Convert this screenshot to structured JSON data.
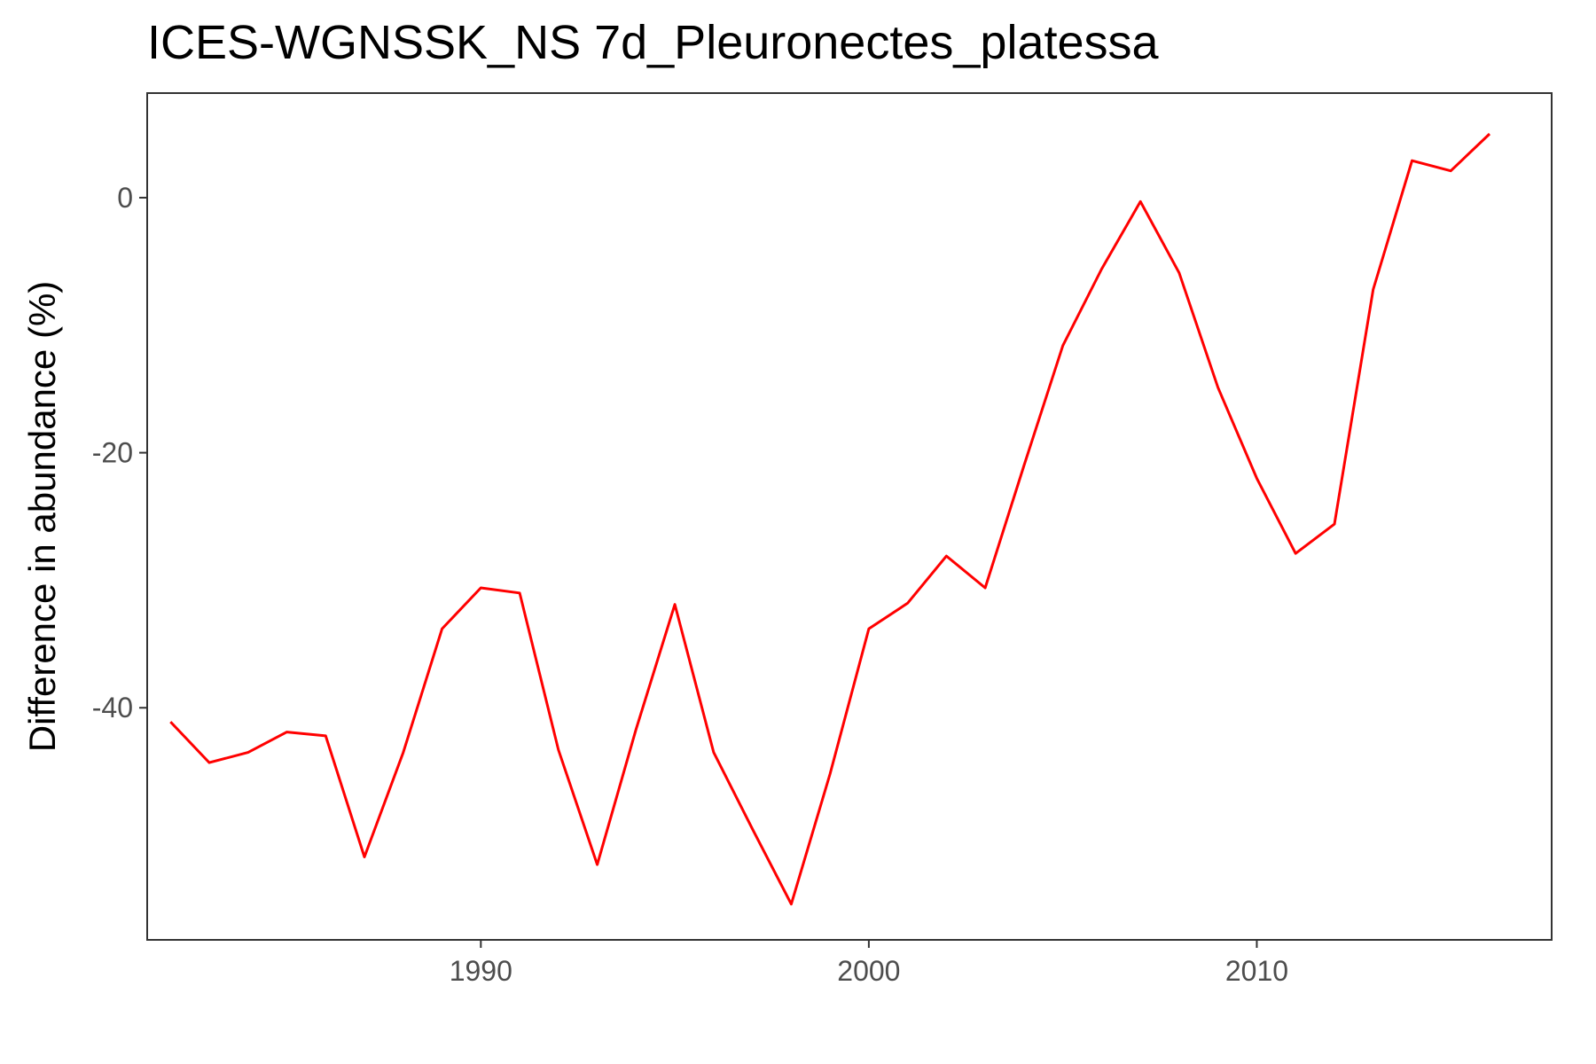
{
  "chart_data": {
    "type": "line",
    "title": "ICES-WGNSSK_NS 7d_Pleuronectes_platessa",
    "xlabel": "",
    "ylabel": "Difference in abundance (%)",
    "xlim": [
      1981.4,
      2017.6
    ],
    "ylim": [
      -58.2,
      8.2
    ],
    "x_ticks": [
      1990,
      2000,
      2010
    ],
    "x_tick_labels": [
      "1990",
      "2000",
      "2010"
    ],
    "y_ticks": [
      0,
      -20,
      -40
    ],
    "y_tick_labels": [
      "0",
      "-20",
      "-40"
    ],
    "grid": false,
    "legend": "none",
    "series": [
      {
        "color": "#ff0000",
        "x": [
          1982,
          1983,
          1984,
          1985,
          1986,
          1987,
          1988,
          1989,
          1990,
          1991,
          1992,
          1993,
          1994,
          1995,
          1996,
          1997,
          1998,
          1999,
          2000,
          2001,
          2002,
          2003,
          2004,
          2005,
          2006,
          2007,
          2008,
          2009,
          2010,
          2011,
          2012,
          2013,
          2014,
          2015,
          2016
        ],
        "y": [
          -41.1,
          -44.3,
          -43.5,
          -41.9,
          -42.2,
          -51.7,
          -43.5,
          -33.8,
          -30.6,
          -31.0,
          -43.3,
          -52.3,
          -41.7,
          -31.9,
          -43.5,
          -49.5,
          -55.4,
          -45.2,
          -33.8,
          -31.8,
          -28.1,
          -30.6,
          -21.0,
          -11.6,
          -5.6,
          -0.3,
          -5.9,
          -14.9,
          -22.0,
          -27.9,
          -25.6,
          -7.2,
          2.9,
          2.1,
          5.0
        ]
      }
    ]
  }
}
